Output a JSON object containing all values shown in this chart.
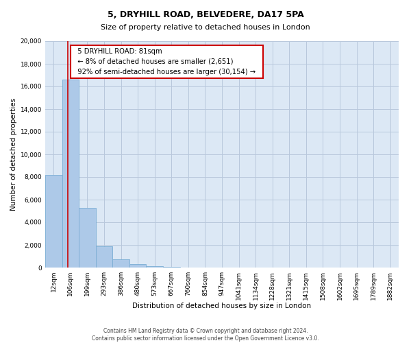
{
  "title": "5, DRYHILL ROAD, BELVEDERE, DA17 5PA",
  "subtitle": "Size of property relative to detached houses in London",
  "xlabel": "Distribution of detached houses by size in London",
  "ylabel": "Number of detached properties",
  "bar_labels": [
    "12sqm",
    "106sqm",
    "199sqm",
    "293sqm",
    "386sqm",
    "480sqm",
    "573sqm",
    "667sqm",
    "760sqm",
    "854sqm",
    "947sqm",
    "1041sqm",
    "1134sqm",
    "1228sqm",
    "1321sqm",
    "1415sqm",
    "1508sqm",
    "1602sqm",
    "1695sqm",
    "1789sqm",
    "1882sqm"
  ],
  "bar_values": [
    8200,
    16600,
    5300,
    1850,
    750,
    280,
    150,
    80,
    0,
    0,
    0,
    0,
    0,
    0,
    0,
    0,
    0,
    0,
    0,
    0,
    0
  ],
  "bar_color": "#adc9e8",
  "bar_edge_color": "#7aadd4",
  "ylim": [
    0,
    20000
  ],
  "yticks": [
    0,
    2000,
    4000,
    6000,
    8000,
    10000,
    12000,
    14000,
    16000,
    18000,
    20000
  ],
  "annotation_title": "5 DRYHILL ROAD: 81sqm",
  "annotation_line1": "← 8% of detached houses are smaller (2,651)",
  "annotation_line2": "92% of semi-detached houses are larger (30,154) →",
  "annotation_box_facecolor": "#ffffff",
  "annotation_box_edgecolor": "#cc0000",
  "red_line_color": "#cc0000",
  "red_line_x": 0.83,
  "footer_line1": "Contains HM Land Registry data © Crown copyright and database right 2024.",
  "footer_line2": "Contains public sector information licensed under the Open Government Licence v3.0.",
  "fig_bg_color": "#ffffff",
  "plot_bg_color": "#dce8f5",
  "grid_color": "#b8c8dc",
  "title_fontsize": 9,
  "subtitle_fontsize": 8,
  "axis_label_fontsize": 7.5,
  "tick_fontsize": 6.5,
  "annotation_fontsize": 7.2,
  "footer_fontsize": 5.5
}
